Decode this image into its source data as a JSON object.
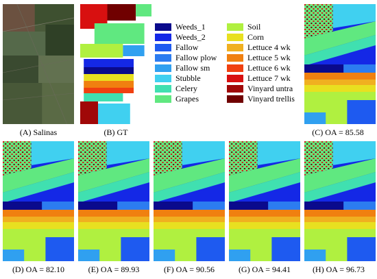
{
  "panels": [
    {
      "id": "A",
      "caption": "(A) Salinas"
    },
    {
      "id": "B",
      "caption": "(B) GT"
    },
    {
      "id": "C",
      "caption": "(C) OA = 85.58"
    },
    {
      "id": "D",
      "caption": "(D) OA = 82.10"
    },
    {
      "id": "E",
      "caption": "(E) OA = 89.93"
    },
    {
      "id": "F",
      "caption": "(F) OA = 90.56"
    },
    {
      "id": "G",
      "caption": "(G) OA = 94.41"
    },
    {
      "id": "H",
      "caption": "(H) OA = 96.73"
    }
  ],
  "legend": [
    {
      "label": "Weeds_1",
      "color": "#0a0a8c"
    },
    {
      "label": "Weeds_2",
      "color": "#1428e6"
    },
    {
      "label": "Fallow",
      "color": "#1e5af0"
    },
    {
      "label": "Fallow plow",
      "color": "#2c7cf0"
    },
    {
      "label": "Fallow sm",
      "color": "#30a0f0"
    },
    {
      "label": "Stubble",
      "color": "#40d0f0"
    },
    {
      "label": "Celery",
      "color": "#40e0b0"
    },
    {
      "label": "Grapes",
      "color": "#60e880"
    },
    {
      "label": "Soil",
      "color": "#b0f040"
    },
    {
      "label": "Corn",
      "color": "#e8e020"
    },
    {
      "label": "Lettuce 4 wk",
      "color": "#f0b020"
    },
    {
      "label": "Lettuce 5 wk",
      "color": "#f08010"
    },
    {
      "label": "Lettuce 6 wk",
      "color": "#f04010"
    },
    {
      "label": "Lettuce 7 wk",
      "color": "#d81010"
    },
    {
      "label": "Vinyard untra",
      "color": "#a00808"
    },
    {
      "label": "Vinyard trellis",
      "color": "#700000"
    }
  ]
}
